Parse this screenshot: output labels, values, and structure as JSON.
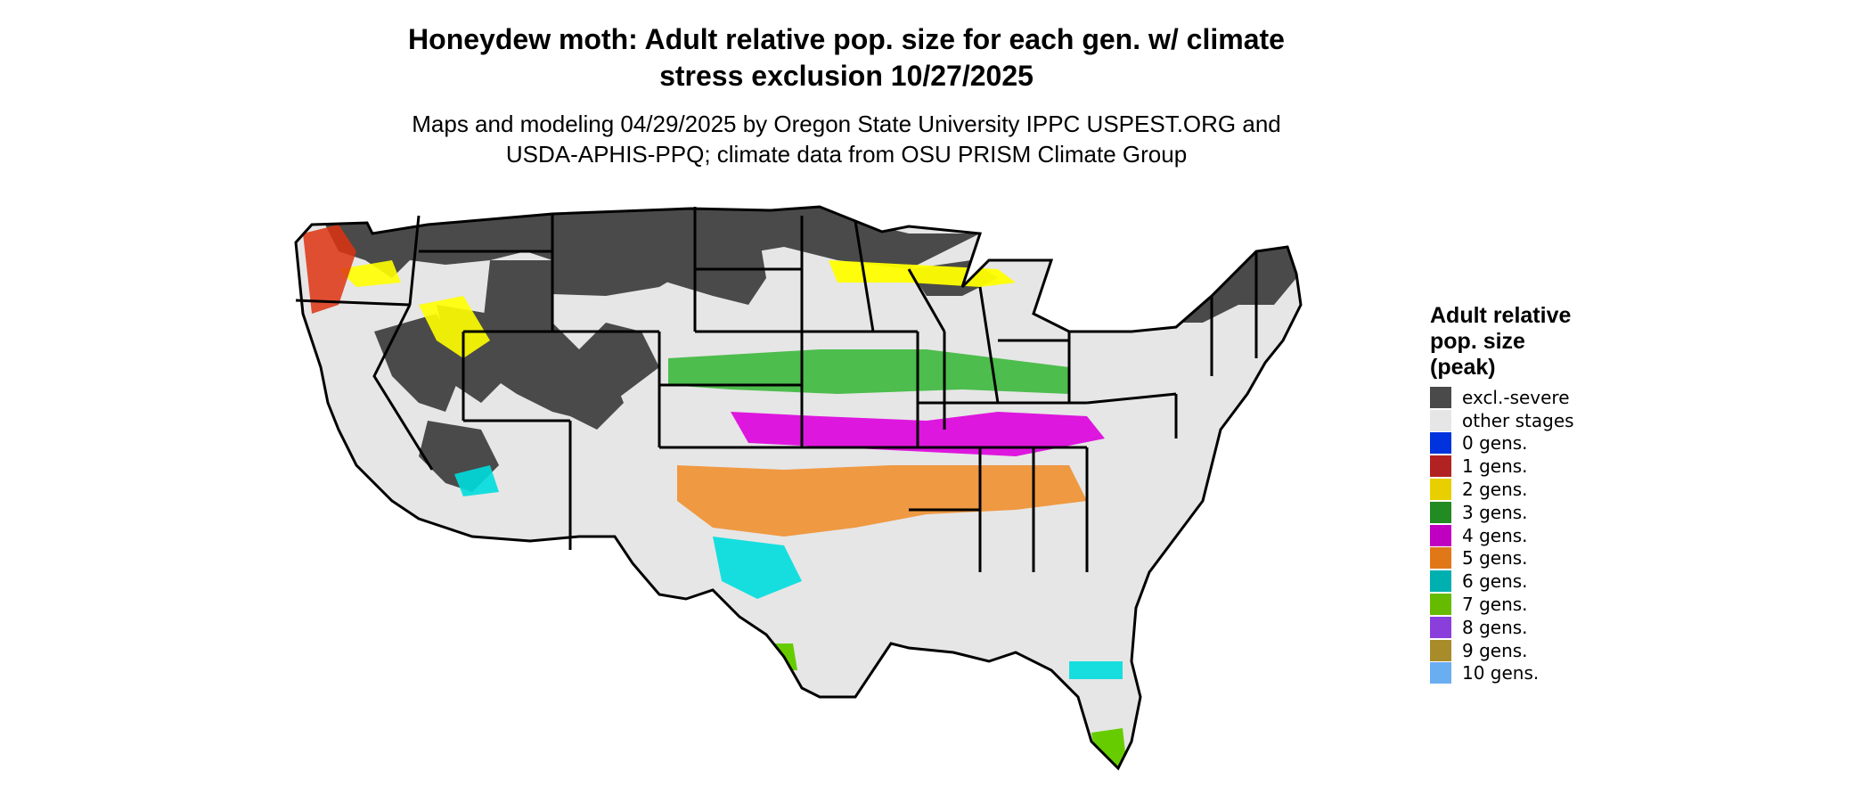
{
  "title_line1": "Honeydew moth: Adult relative pop. size for each gen. w/ climate",
  "title_line2": "stress exclusion 10/27/2025",
  "subtitle_line1": "Maps and modeling 04/29/2025 by Oregon State University IPPC USPEST.ORG and",
  "subtitle_line2": "USDA-APHIS-PPQ; climate data from OSU PRISM Climate Group",
  "legend": {
    "title_line1": "Adult relative",
    "title_line2": "pop. size",
    "title_line3": "(peak)",
    "items": [
      {
        "label": "excl.-severe",
        "color": "#4a4a4a"
      },
      {
        "label": "other stages",
        "color": "#e6e6e6"
      },
      {
        "label": "0 gens.",
        "color": "#0033dd"
      },
      {
        "label": "1 gens.",
        "color": "#b22222"
      },
      {
        "label": "2 gens.",
        "color": "#e8d000"
      },
      {
        "label": "3 gens.",
        "color": "#228b22"
      },
      {
        "label": "4 gens.",
        "color": "#c000c0"
      },
      {
        "label": "5 gens.",
        "color": "#e07818"
      },
      {
        "label": "6 gens.",
        "color": "#00b0b0"
      },
      {
        "label": "7 gens.",
        "color": "#66bb00"
      },
      {
        "label": "8 gens.",
        "color": "#8a3fdd"
      },
      {
        "label": "9 gens.",
        "color": "#a88c2a"
      },
      {
        "label": "10 gens.",
        "color": "#6aaef2"
      }
    ]
  },
  "map_colors": {
    "background": "#e6e6e6",
    "excluded": "#4a4a4a",
    "yellow": "#ffff00",
    "green": "#3cb83c",
    "magenta": "#dd00dd",
    "orange": "#f09030",
    "cyan": "#00dddd",
    "lime": "#66cc00",
    "red": "#dd3311",
    "border": "#000000"
  }
}
